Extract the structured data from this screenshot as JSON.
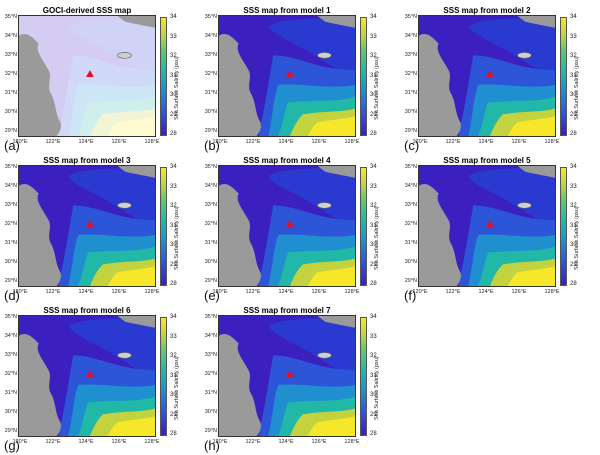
{
  "lat_labels": [
    "35°N",
    "34°N",
    "33°N",
    "32°N",
    "31°N",
    "30°N",
    "29°N"
  ],
  "lon_labels": [
    "120°E",
    "122°E",
    "124°E",
    "126°E",
    "128°E"
  ],
  "colorbar": {
    "ticks": [
      "34",
      "33",
      "32",
      "31",
      "30",
      "29",
      "28"
    ],
    "label": "Sea Surface Salinity (psu)"
  },
  "panels": [
    {
      "title": "GOCI-derived SSS map",
      "tag": "(a)"
    },
    {
      "title": "SSS map from model 1",
      "tag": "(b)"
    },
    {
      "title": "SSS map from model 2",
      "tag": "(c)"
    },
    {
      "title": "SSS map from model 3",
      "tag": "(d)"
    },
    {
      "title": "SSS map from model 4",
      "tag": "(e)"
    },
    {
      "title": "SSS map from model 5",
      "tag": "(f)"
    },
    {
      "title": "SSS map from model 6",
      "tag": "(g)"
    },
    {
      "title": "SSS map from model 7",
      "tag": "(h)"
    }
  ],
  "colors": {
    "land": "#9a9a9a",
    "low_salinity": "#3b1fbf",
    "mid_salinity": "#22b8a8",
    "high_salinity": "#f7e72a",
    "marker": "#e0102a"
  }
}
